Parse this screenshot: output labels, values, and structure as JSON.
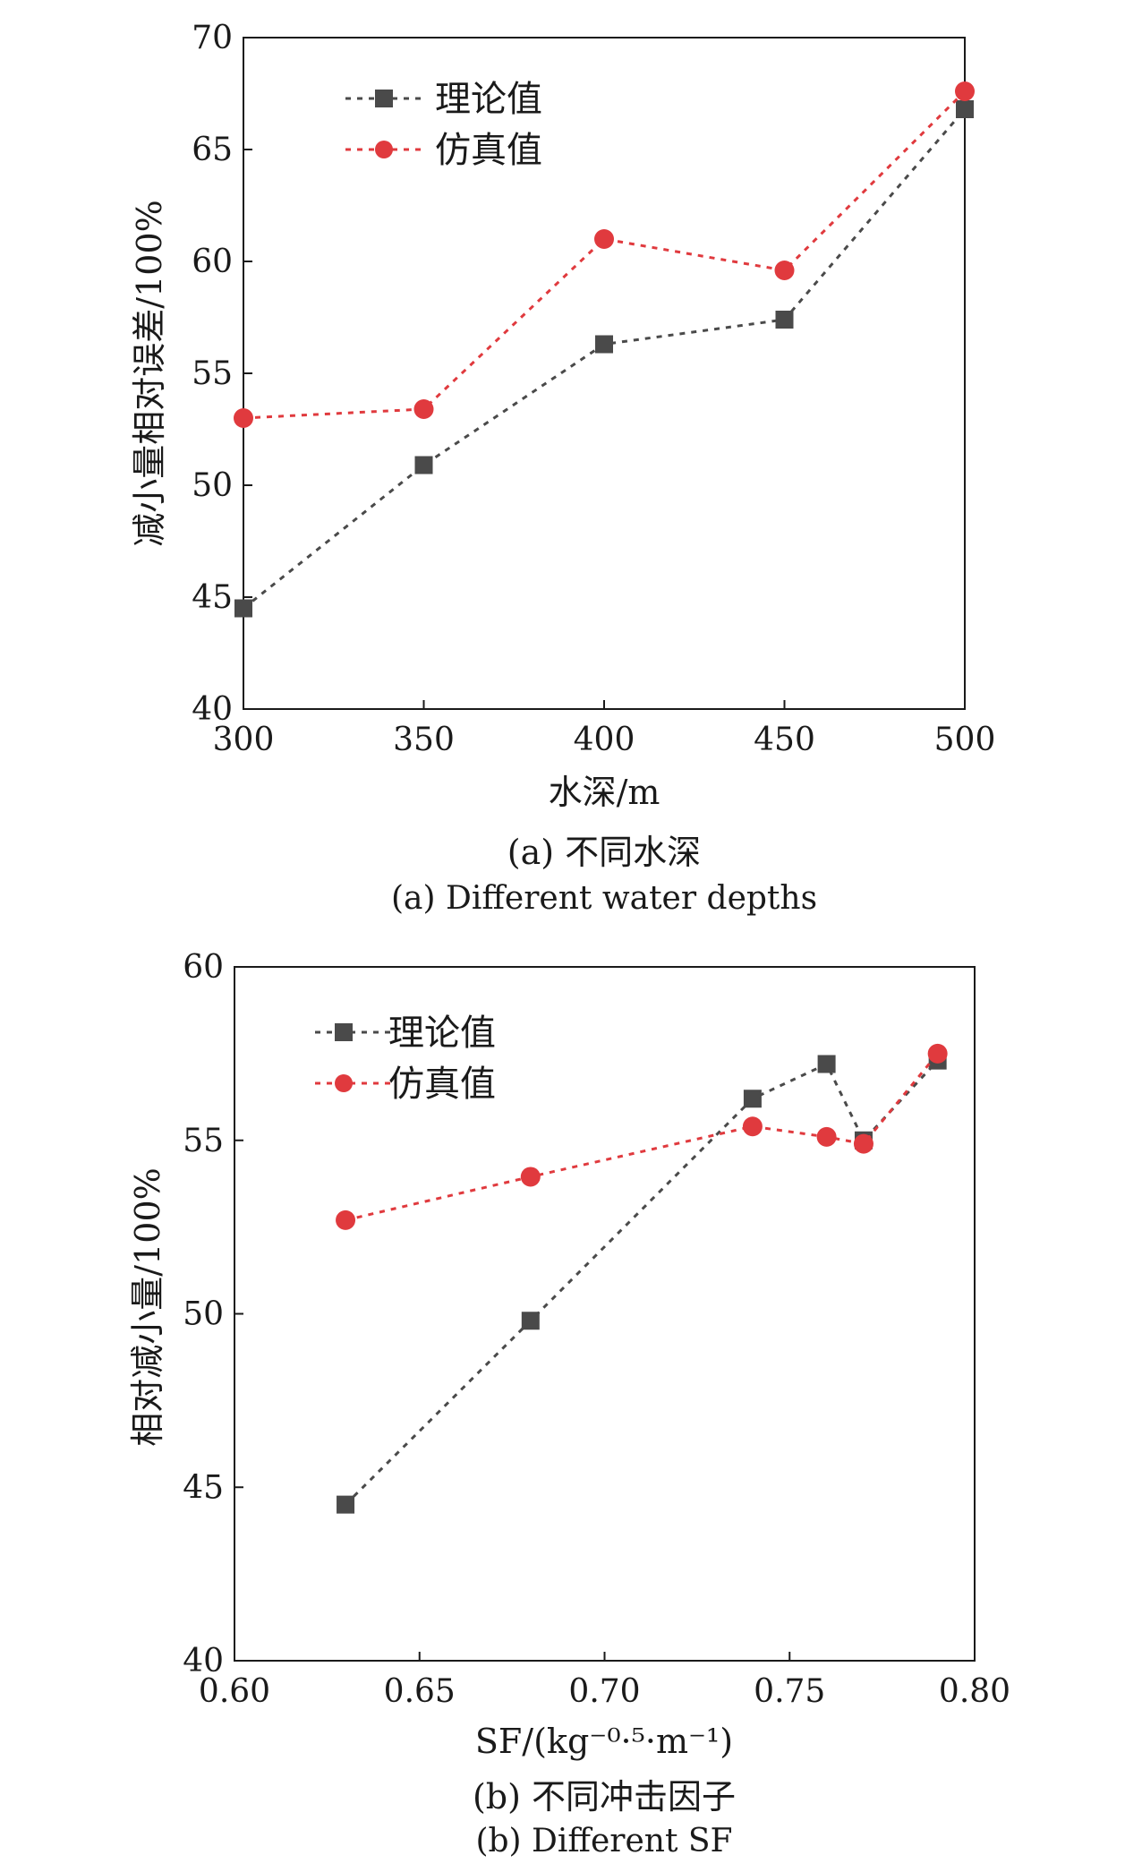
{
  "chart_data": [
    {
      "type": "line",
      "x": [
        300,
        350,
        400,
        450,
        500
      ],
      "series": [
        {
          "name": "理论值",
          "marker": "square",
          "color": "#4a4a4a",
          "values": [
            44.5,
            50.9,
            56.3,
            57.4,
            66.8
          ]
        },
        {
          "name": "仿真值",
          "marker": "circle",
          "color": "#e03a3e",
          "values": [
            53.0,
            53.4,
            61.0,
            59.6,
            67.6
          ]
        }
      ],
      "xlabel": "水深/m",
      "ylabel": "减小量相对误差/100%",
      "xlim": [
        300,
        500
      ],
      "ylim": [
        40,
        70
      ],
      "xticks": [
        "300",
        "350",
        "400",
        "450",
        "500"
      ],
      "yticks": [
        "40",
        "45",
        "50",
        "55",
        "60",
        "65",
        "70"
      ],
      "grid": false,
      "legend_position": "top-left",
      "caption": "(a) 不同水深",
      "caption_en": "(a) Different water depths"
    },
    {
      "type": "line",
      "x": [
        0.63,
        0.68,
        0.74,
        0.76,
        0.77,
        0.79
      ],
      "series": [
        {
          "name": "理论值",
          "marker": "square",
          "color": "#4a4a4a",
          "values": [
            44.5,
            49.8,
            56.2,
            57.2,
            55.0,
            57.3
          ]
        },
        {
          "name": "仿真值",
          "marker": "circle",
          "color": "#e03a3e",
          "values": [
            52.7,
            53.95,
            55.4,
            55.1,
            54.9,
            57.5
          ]
        }
      ],
      "xlabel": "SF/(kg⁻⁰·⁵·m⁻¹)",
      "ylabel": "相对减小量/100%",
      "xlim": [
        0.6,
        0.8
      ],
      "ylim": [
        40,
        60
      ],
      "xticks": [
        "0.60",
        "0.65",
        "0.70",
        "0.75",
        "0.80"
      ],
      "yticks": [
        "40",
        "45",
        "50",
        "55",
        "60"
      ],
      "grid": false,
      "legend_position": "top-left",
      "caption": "(b) 不同冲击因子",
      "caption_en": "(b) Different SF"
    }
  ]
}
